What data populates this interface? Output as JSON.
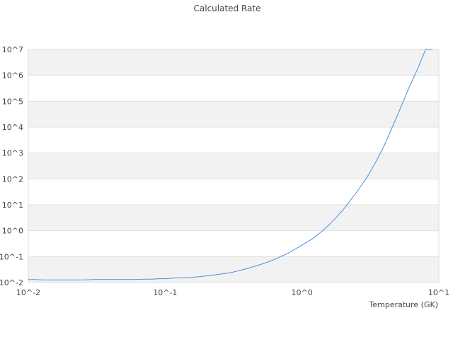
{
  "chart_data": {
    "type": "line",
    "title": "Calculated Rate",
    "xlabel": "Temperature (GK)",
    "ylabel": "",
    "x_scale": "log",
    "y_scale": "log",
    "xlim": [
      0.01,
      10
    ],
    "ylim": [
      0.01,
      10000000
    ],
    "x_tick_labels": [
      "10^-2",
      "10^-1",
      "10^0",
      "10^1"
    ],
    "y_tick_labels": [
      "10^-2",
      "10^-1",
      "10^0",
      "10^1",
      "10^2",
      "10^3",
      "10^4",
      "10^5",
      "10^6",
      "10^7"
    ],
    "grid": "horizontal alternating bands",
    "line_color": "#4a90d9",
    "series": [
      {
        "x": [
          0.01,
          0.011,
          0.013,
          0.016,
          0.02,
          0.025,
          0.03,
          0.04,
          0.05,
          0.06,
          0.07,
          0.08,
          0.09,
          0.1,
          0.12,
          0.14,
          0.16,
          0.18,
          0.2,
          0.25,
          0.3,
          0.35,
          0.4,
          0.45,
          0.5,
          0.6,
          0.7,
          0.8,
          0.9,
          1.0,
          1.2,
          1.4,
          1.6,
          1.8,
          2.0,
          2.5,
          3.0,
          3.5,
          4.0,
          5.0,
          6.0,
          7.0,
          8.0,
          9.0
        ],
        "y": [
          0.013,
          0.013,
          0.0125,
          0.0125,
          0.0125,
          0.0125,
          0.013,
          0.013,
          0.013,
          0.013,
          0.0135,
          0.0135,
          0.014,
          0.014,
          0.015,
          0.015,
          0.016,
          0.017,
          0.018,
          0.021,
          0.024,
          0.029,
          0.035,
          0.042,
          0.05,
          0.07,
          0.1,
          0.14,
          0.2,
          0.28,
          0.5,
          0.95,
          1.8,
          3.5,
          6.5,
          30,
          120,
          500,
          2000,
          30000,
          300000,
          1800000,
          10000000,
          30000000
        ]
      }
    ]
  }
}
